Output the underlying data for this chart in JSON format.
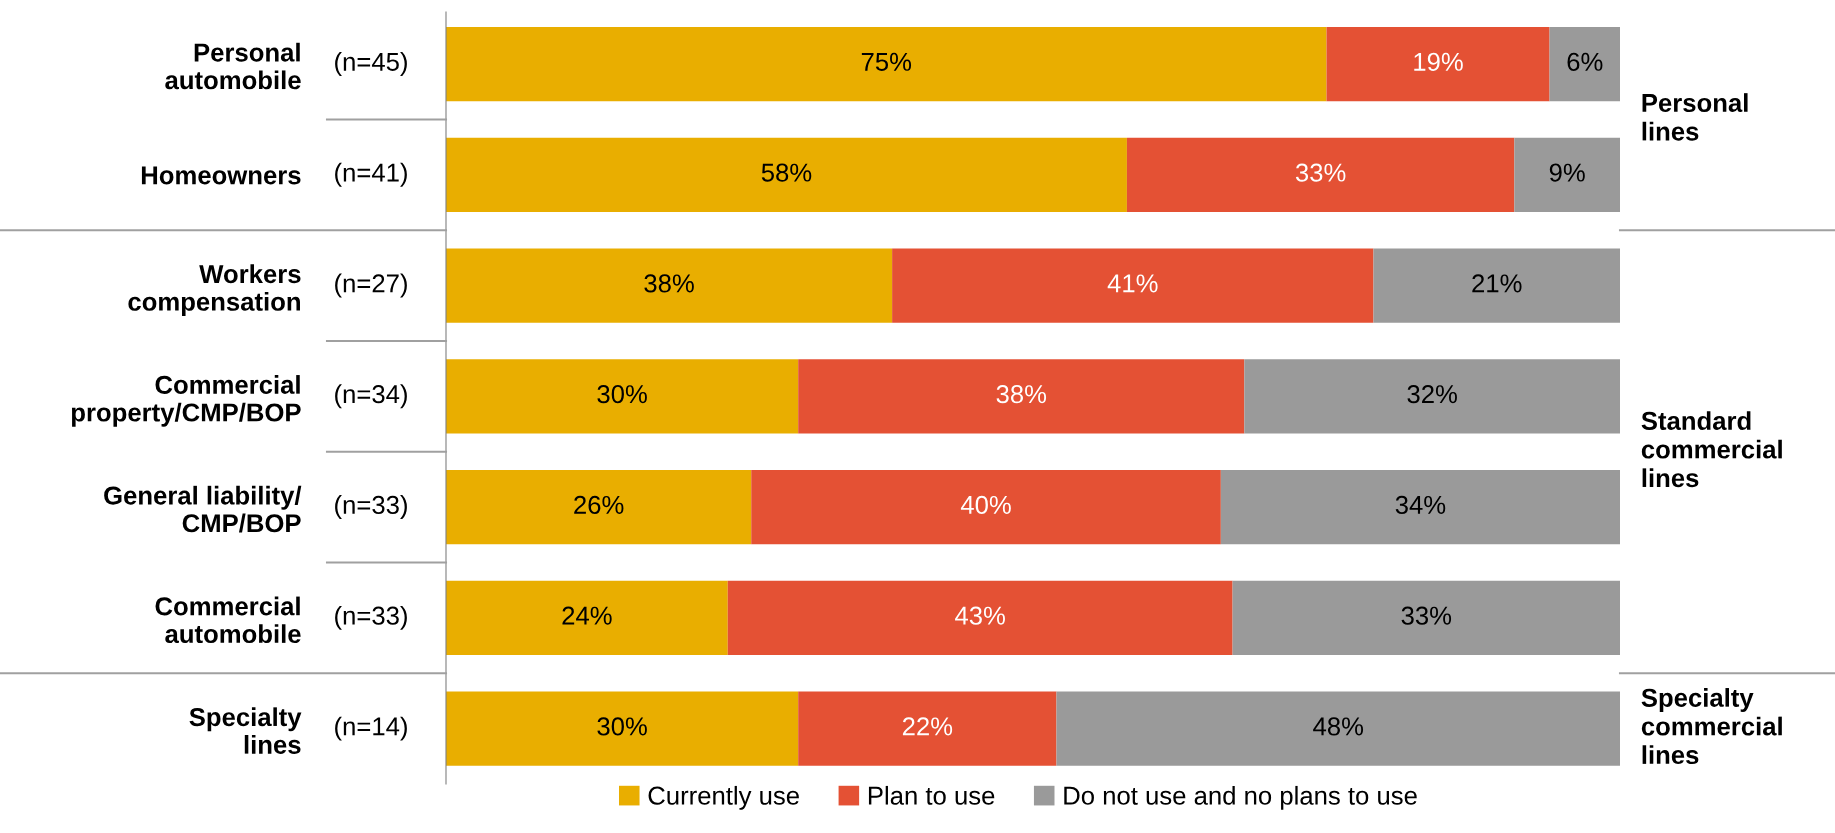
{
  "chart_data": {
    "type": "bar",
    "orientation": "horizontal",
    "stacked": true,
    "categories": [
      "Personal\nautomobile",
      "Homeowners",
      "Workers\ncompensation",
      "Commercial\nproperty/CMP/BOP",
      "General liability/\nCMP/BOP",
      "Commercial\nautomobile",
      "Specialty\nlines"
    ],
    "series": [
      {
        "name": "Currently use",
        "color": "#e9ae00",
        "values": [
          75,
          58,
          38,
          30,
          26,
          24,
          30
        ],
        "value_labels": [
          "75%",
          "58%",
          "38%",
          "30%",
          "26%",
          "24%",
          "30%"
        ]
      },
      {
        "name": "Plan to use",
        "color": "#e45134",
        "values": [
          19,
          33,
          41,
          38,
          40,
          43,
          22
        ],
        "value_labels": [
          "19%",
          "33%",
          "41%",
          "38%",
          "40%",
          "43%",
          "22%"
        ]
      },
      {
        "name": "Do not use and no plans to use",
        "color": "#9a9a9a",
        "values": [
          6,
          9,
          21,
          32,
          34,
          33,
          48
        ],
        "value_labels": [
          "6%",
          "9%",
          "21%",
          "32%",
          "34%",
          "33%",
          "48%"
        ]
      }
    ],
    "xlim": [
      0,
      100
    ],
    "tick_labels": "y",
    "grid": false,
    "legend": "bottom",
    "annotations": [
      "(n=45)",
      "(n=41)",
      "(n=27)",
      "(n=34)",
      "(n=33)",
      "(n=33)",
      "(n=14)",
      "Personal\nlines",
      "Standard\ncommercial\nlines",
      "Specialty\ncommercial\nlines"
    ]
  }
}
